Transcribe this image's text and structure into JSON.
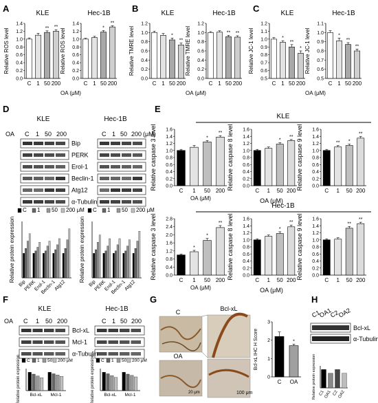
{
  "panel_letters": [
    "A",
    "B",
    "C",
    "D",
    "E",
    "F",
    "G",
    "H"
  ],
  "lines": [
    "KLE",
    "Hec-1B"
  ],
  "conc_header": "OA",
  "concentrations": [
    "C",
    "1",
    "50",
    "200"
  ],
  "um_label": "(μM)",
  "fill_levels": [
    "#ffffff",
    "#e3e3e3",
    "#a9a9a9",
    "#cfcfcf"
  ],
  "accent": {
    "black": "#000000",
    "gray": "#a0a0a0"
  },
  "chart_data": [
    {
      "id": "A-KLE",
      "type": "bar",
      "title": "KLE",
      "ylabel": "Relative ROS level",
      "xlabel": "OA (μM)",
      "categories": [
        "C",
        "1",
        "50",
        "200"
      ],
      "values": [
        1.0,
        1.1,
        1.17,
        1.2
      ],
      "errors": [
        0.03,
        0.05,
        0.04,
        0.04
      ],
      "sig": [
        "",
        "",
        "**",
        "**"
      ],
      "yticks": [
        "1.4",
        "1.2",
        "1.0",
        "0.8",
        "0.6",
        "0.4",
        "0.2",
        "0.0"
      ],
      "ylim": [
        0,
        1.4
      ]
    },
    {
      "id": "A-Hec",
      "type": "bar",
      "title": "Hec-1B",
      "ylabel": "Relative ROS level",
      "xlabel": "OA (μM)",
      "categories": [
        "C",
        "1",
        "50",
        "200"
      ],
      "values": [
        1.0,
        1.04,
        1.18,
        1.31
      ],
      "errors": [
        0.02,
        0.03,
        0.04,
        0.03
      ],
      "sig": [
        "",
        "",
        "*",
        "**"
      ],
      "yticks": [
        "1.4",
        "1.2",
        "1.0",
        "0.8",
        "0.6",
        "0.4",
        "0.2",
        "0.0"
      ],
      "ylim": [
        0,
        1.4
      ]
    },
    {
      "id": "B-KLE",
      "type": "bar",
      "title": "KLE",
      "ylabel": "Relative TMRE level",
      "xlabel": "OA (μM)",
      "categories": [
        "C",
        "1",
        "50",
        "200"
      ],
      "values": [
        1.0,
        0.94,
        0.84,
        0.73
      ],
      "errors": [
        0.03,
        0.04,
        0.04,
        0.04
      ],
      "sig": [
        "",
        "",
        "*",
        "**"
      ],
      "yticks": [
        "1.2",
        "1.0",
        "0.8",
        "0.6",
        "0.4",
        "0.2",
        "0.0"
      ],
      "ylim": [
        0,
        1.2
      ]
    },
    {
      "id": "B-Hec",
      "type": "bar",
      "title": "Hec-1B",
      "ylabel": "Relative TMRE level",
      "xlabel": "OA (μM)",
      "categories": [
        "C",
        "1",
        "50",
        "200"
      ],
      "values": [
        1.0,
        1.01,
        0.91,
        0.9
      ],
      "errors": [
        0.02,
        0.03,
        0.03,
        0.03
      ],
      "sig": [
        "",
        "",
        "**",
        "**"
      ],
      "yticks": [
        "1.2",
        "1.0",
        "0.8",
        "0.6",
        "0.4",
        "0.2",
        "0.0"
      ],
      "ylim": [
        0,
        1.2
      ]
    },
    {
      "id": "C-KLE",
      "type": "bar",
      "title": "KLE",
      "ylabel": "Relative JC-1 level",
      "xlabel": "OA (μM)",
      "categories": [
        "C",
        "1",
        "50",
        "200"
      ],
      "values": [
        1.0,
        0.96,
        0.9,
        0.82
      ],
      "errors": [
        0.02,
        0.02,
        0.03,
        0.03
      ],
      "sig": [
        "",
        "*",
        "**",
        "*"
      ],
      "yticks": [
        "1.2",
        "1.1",
        "1.0",
        "0.9",
        "0.8",
        "0.7",
        "0.6",
        "0.5"
      ],
      "ylim": [
        0.5,
        1.2
      ]
    },
    {
      "id": "C-Hec",
      "type": "bar",
      "title": "Hec-1B",
      "ylabel": "Relative JC-1 level",
      "xlabel": "OA (μM)",
      "categories": [
        "C",
        "1",
        "50",
        "200"
      ],
      "values": [
        1.0,
        0.91,
        0.87,
        0.8
      ],
      "errors": [
        0.02,
        0.03,
        0.02,
        0.02
      ],
      "sig": [
        "",
        "*",
        "**",
        "**"
      ],
      "yticks": [
        "1.1",
        "1.0",
        "0.9",
        "0.8",
        "0.7",
        "0.6",
        "0.5"
      ],
      "ylim": [
        0.5,
        1.1
      ]
    },
    {
      "id": "E-KLE-3",
      "type": "bar",
      "ylabel": "Relative caspase 3 level",
      "xlabel": "OA (μM)",
      "categories": [
        "C",
        "1",
        "50",
        "200"
      ],
      "values": [
        1.0,
        1.09,
        1.24,
        1.38
      ],
      "errors": [
        0.03,
        0.05,
        0.04,
        0.04
      ],
      "sig": [
        "",
        "",
        "*",
        "**"
      ],
      "yticks": [
        "1.6",
        "1.4",
        "1.2",
        "1.0",
        "0.8",
        "0.6",
        "0.4",
        "0.2",
        "0.0"
      ],
      "ylim": [
        0,
        1.6
      ]
    },
    {
      "id": "E-KLE-8",
      "type": "bar",
      "ylabel": "Relative caspase 8 level",
      "xlabel": "",
      "categories": [
        "C",
        "1",
        "50",
        "200"
      ],
      "values": [
        1.0,
        1.06,
        1.18,
        1.28
      ],
      "errors": [
        0.03,
        0.04,
        0.04,
        0.03
      ],
      "sig": [
        "",
        "",
        "*",
        "**"
      ],
      "yticks": [
        "1.6",
        "1.4",
        "1.2",
        "1.0",
        "0.8",
        "0.6",
        "0.4",
        "0.2",
        "0.0"
      ],
      "ylim": [
        0,
        1.6
      ]
    },
    {
      "id": "E-KLE-9",
      "type": "bar",
      "ylabel": "Relative caspase 9 level",
      "xlabel": "",
      "categories": [
        "C",
        "1",
        "50",
        "200"
      ],
      "values": [
        1.0,
        1.1,
        1.14,
        1.35
      ],
      "errors": [
        0.03,
        0.04,
        0.04,
        0.05
      ],
      "sig": [
        "",
        "**",
        "*",
        "**"
      ],
      "yticks": [
        "1.6",
        "1.4",
        "1.2",
        "1.0",
        "0.8",
        "0.6",
        "0.4",
        "0.2",
        "0.0"
      ],
      "ylim": [
        0,
        1.6
      ]
    },
    {
      "id": "E-Hec-3",
      "type": "bar",
      "ylabel": "Relative caspase 3 level",
      "xlabel": "OA (μM)",
      "categories": [
        "C",
        "1",
        "50",
        "200"
      ],
      "values": [
        1.0,
        1.16,
        1.72,
        2.36
      ],
      "errors": [
        0.04,
        0.07,
        0.1,
        0.1
      ],
      "sig": [
        "",
        "*",
        "*",
        "**"
      ],
      "yticks": [
        "2.8",
        "2.4",
        "2.0",
        "1.6",
        "1.2",
        "0.8",
        "0.4",
        "0.0"
      ],
      "ylim": [
        0,
        2.8
      ]
    },
    {
      "id": "E-Hec-8",
      "type": "bar",
      "ylabel": "Relative caspase 8 level",
      "xlabel": "",
      "categories": [
        "C",
        "1",
        "50",
        "200"
      ],
      "values": [
        1.0,
        1.1,
        1.18,
        1.37
      ],
      "errors": [
        0.03,
        0.04,
        0.05,
        0.05
      ],
      "sig": [
        "",
        "",
        "*",
        "**"
      ],
      "yticks": [
        "1.6",
        "1.4",
        "1.2",
        "1.0",
        "0.8",
        "0.6",
        "0.4",
        "0.2",
        "0.0"
      ],
      "ylim": [
        0,
        1.6
      ]
    },
    {
      "id": "E-Hec-9",
      "type": "bar",
      "ylabel": "Relative caspase 9 level",
      "xlabel": "",
      "categories": [
        "C",
        "1",
        "50",
        "200"
      ],
      "values": [
        1.0,
        1.02,
        1.33,
        1.46
      ],
      "errors": [
        0.03,
        0.04,
        0.05,
        0.04
      ],
      "sig": [
        "",
        "",
        "**",
        "**"
      ],
      "yticks": [
        "1.6",
        "1.4",
        "1.2",
        "1.0",
        "0.8",
        "0.6",
        "0.4",
        "0.2",
        "0.0"
      ],
      "ylim": [
        0,
        1.6
      ]
    },
    {
      "id": "D-KLE",
      "type": "bar",
      "ylabel": "Relative protein expression",
      "categories": [
        "Bip",
        "PERK",
        "Erol-1",
        "Beclin-1",
        "Atg12"
      ],
      "legend": [
        "C",
        "1",
        "50",
        "200 μM"
      ],
      "series": [
        {
          "name": "C",
          "values": [
            1.0,
            1.0,
            1.0,
            1.0,
            1.0
          ]
        },
        {
          "name": "1",
          "values": [
            1.2,
            1.1,
            1.1,
            1.15,
            1.2
          ]
        },
        {
          "name": "50",
          "values": [
            1.5,
            1.25,
            1.3,
            1.35,
            1.55
          ]
        },
        {
          "name": "200 μM",
          "values": [
            1.8,
            1.45,
            1.5,
            1.6,
            2.0
          ]
        }
      ],
      "ylim": [
        0,
        2.3
      ]
    },
    {
      "id": "D-Hec",
      "type": "bar",
      "ylabel": "Relative protein expression",
      "categories": [
        "Bip",
        "PERK",
        "Erol-1",
        "Beclin-1",
        "Atg12"
      ],
      "legend": [
        "C",
        "1",
        "50",
        "200 μM"
      ],
      "series": [
        {
          "name": "C",
          "values": [
            1.0,
            1.0,
            1.0,
            1.0,
            1.0
          ]
        },
        {
          "name": "1",
          "values": [
            1.15,
            1.1,
            1.1,
            1.1,
            1.2
          ]
        },
        {
          "name": "50",
          "values": [
            1.45,
            1.3,
            1.35,
            1.3,
            1.5
          ]
        },
        {
          "name": "200 μM",
          "values": [
            1.75,
            1.6,
            1.6,
            1.55,
            1.9
          ]
        }
      ],
      "ylim": [
        0,
        2.3
      ]
    },
    {
      "id": "F-KLE",
      "type": "bar",
      "ylabel": "Relative protein expression",
      "categories": [
        "Bcl-xL",
        "Mcl-1"
      ],
      "legend": [
        "C",
        "1",
        "50",
        "200 μM"
      ],
      "series": [
        {
          "name": "C",
          "values": [
            1.0,
            1.0
          ]
        },
        {
          "name": "1",
          "values": [
            0.9,
            0.92
          ]
        },
        {
          "name": "50",
          "values": [
            0.8,
            0.85
          ]
        },
        {
          "name": "200 μM",
          "values": [
            0.7,
            0.78
          ]
        }
      ],
      "ylim": [
        0,
        1.2
      ]
    },
    {
      "id": "F-Hec",
      "type": "bar",
      "ylabel": "Relative protein expression",
      "categories": [
        "Bcl-xL",
        "Mcl-1"
      ],
      "legend": [
        "C",
        "1",
        "50",
        "200 μM"
      ],
      "series": [
        {
          "name": "C",
          "values": [
            1.0,
            1.0
          ]
        },
        {
          "name": "1",
          "values": [
            0.92,
            0.9
          ]
        },
        {
          "name": "50",
          "values": [
            0.82,
            0.83
          ]
        },
        {
          "name": "200 μM",
          "values": [
            0.72,
            0.75
          ]
        }
      ],
      "ylim": [
        0,
        1.2
      ]
    },
    {
      "id": "G",
      "type": "bar",
      "ylabel": "Bcl-xL IHC H Score",
      "categories": [
        "C",
        "OA"
      ],
      "values": [
        2.2,
        1.7
      ],
      "errors": [
        0.25,
        0.08
      ],
      "sig": [
        "",
        "*"
      ],
      "yticks": [
        "3",
        "2",
        "1",
        "0"
      ],
      "ylim": [
        0,
        3
      ]
    },
    {
      "id": "H",
      "type": "bar",
      "ylabel": "Relative protein expression",
      "categories": [
        "C1",
        "OA1",
        "C2",
        "OA2"
      ],
      "values": [
        1.0,
        0.8,
        1.0,
        0.8
      ],
      "ylim": [
        0,
        1.2
      ]
    }
  ],
  "D": {
    "blot_labels": [
      "Bip",
      "PERK",
      "Erol-1",
      "Beclin-1",
      "Atg12",
      "α-Tubulin"
    ],
    "head": [
      "OA",
      "C",
      "1",
      "50",
      "200",
      "(μM)"
    ]
  },
  "E": {
    "row1_title": "KLE",
    "row2_title": "Hec-1B"
  },
  "F": {
    "blot_labels": [
      "Bcl-xL",
      "Mcl-1",
      "α-Tubulin"
    ],
    "head": [
      "OA",
      "C",
      "1",
      "50",
      "200",
      "(μM)"
    ],
    "xcats": [
      "Bcl-xL",
      "Mcl-1"
    ]
  },
  "G": {
    "img_c": "C",
    "img_oa": "OA",
    "stain_label": "Bcl-xL",
    "scale_small": "20 μm",
    "scale_big": "100 μm"
  },
  "H": {
    "lanes": [
      "C1",
      "OA1",
      "C2",
      "OA2"
    ],
    "blot_labels": [
      "Bcl-xL",
      "α-Tubulin"
    ]
  }
}
